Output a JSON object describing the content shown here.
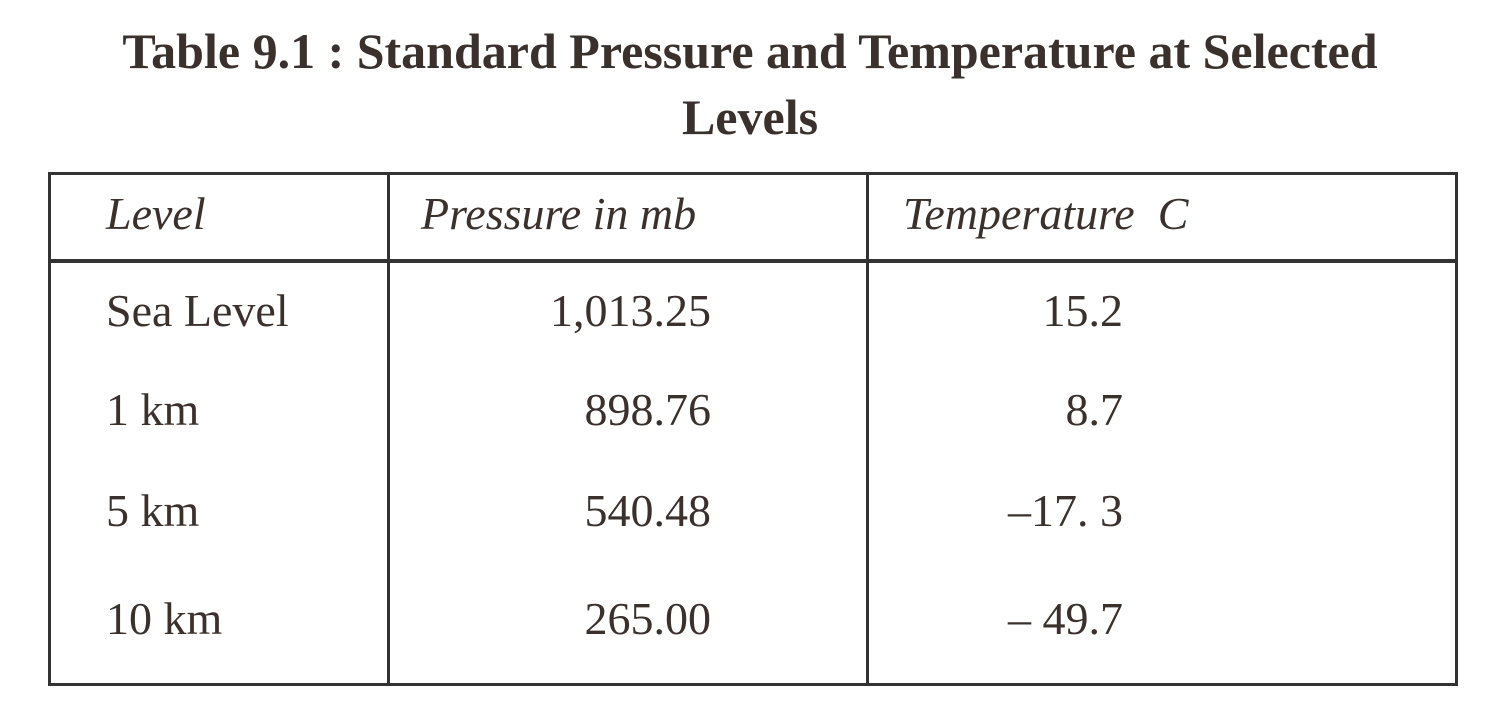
{
  "header": {
    "title": "Table 9.1 : Standard Pressure and Temperature at Selected Levels"
  },
  "table": {
    "columns": [
      "Level",
      "Pressure in mb",
      "Temperature  C"
    ],
    "rows": [
      [
        "Sea Level",
        "1,013.25",
        "15.2"
      ],
      [
        "1 km",
        "898.76",
        "8.7"
      ],
      [
        "5 km",
        "540.48",
        "–17. 3"
      ],
      [
        "10 km",
        "265.00",
        "– 49.7"
      ]
    ]
  }
}
